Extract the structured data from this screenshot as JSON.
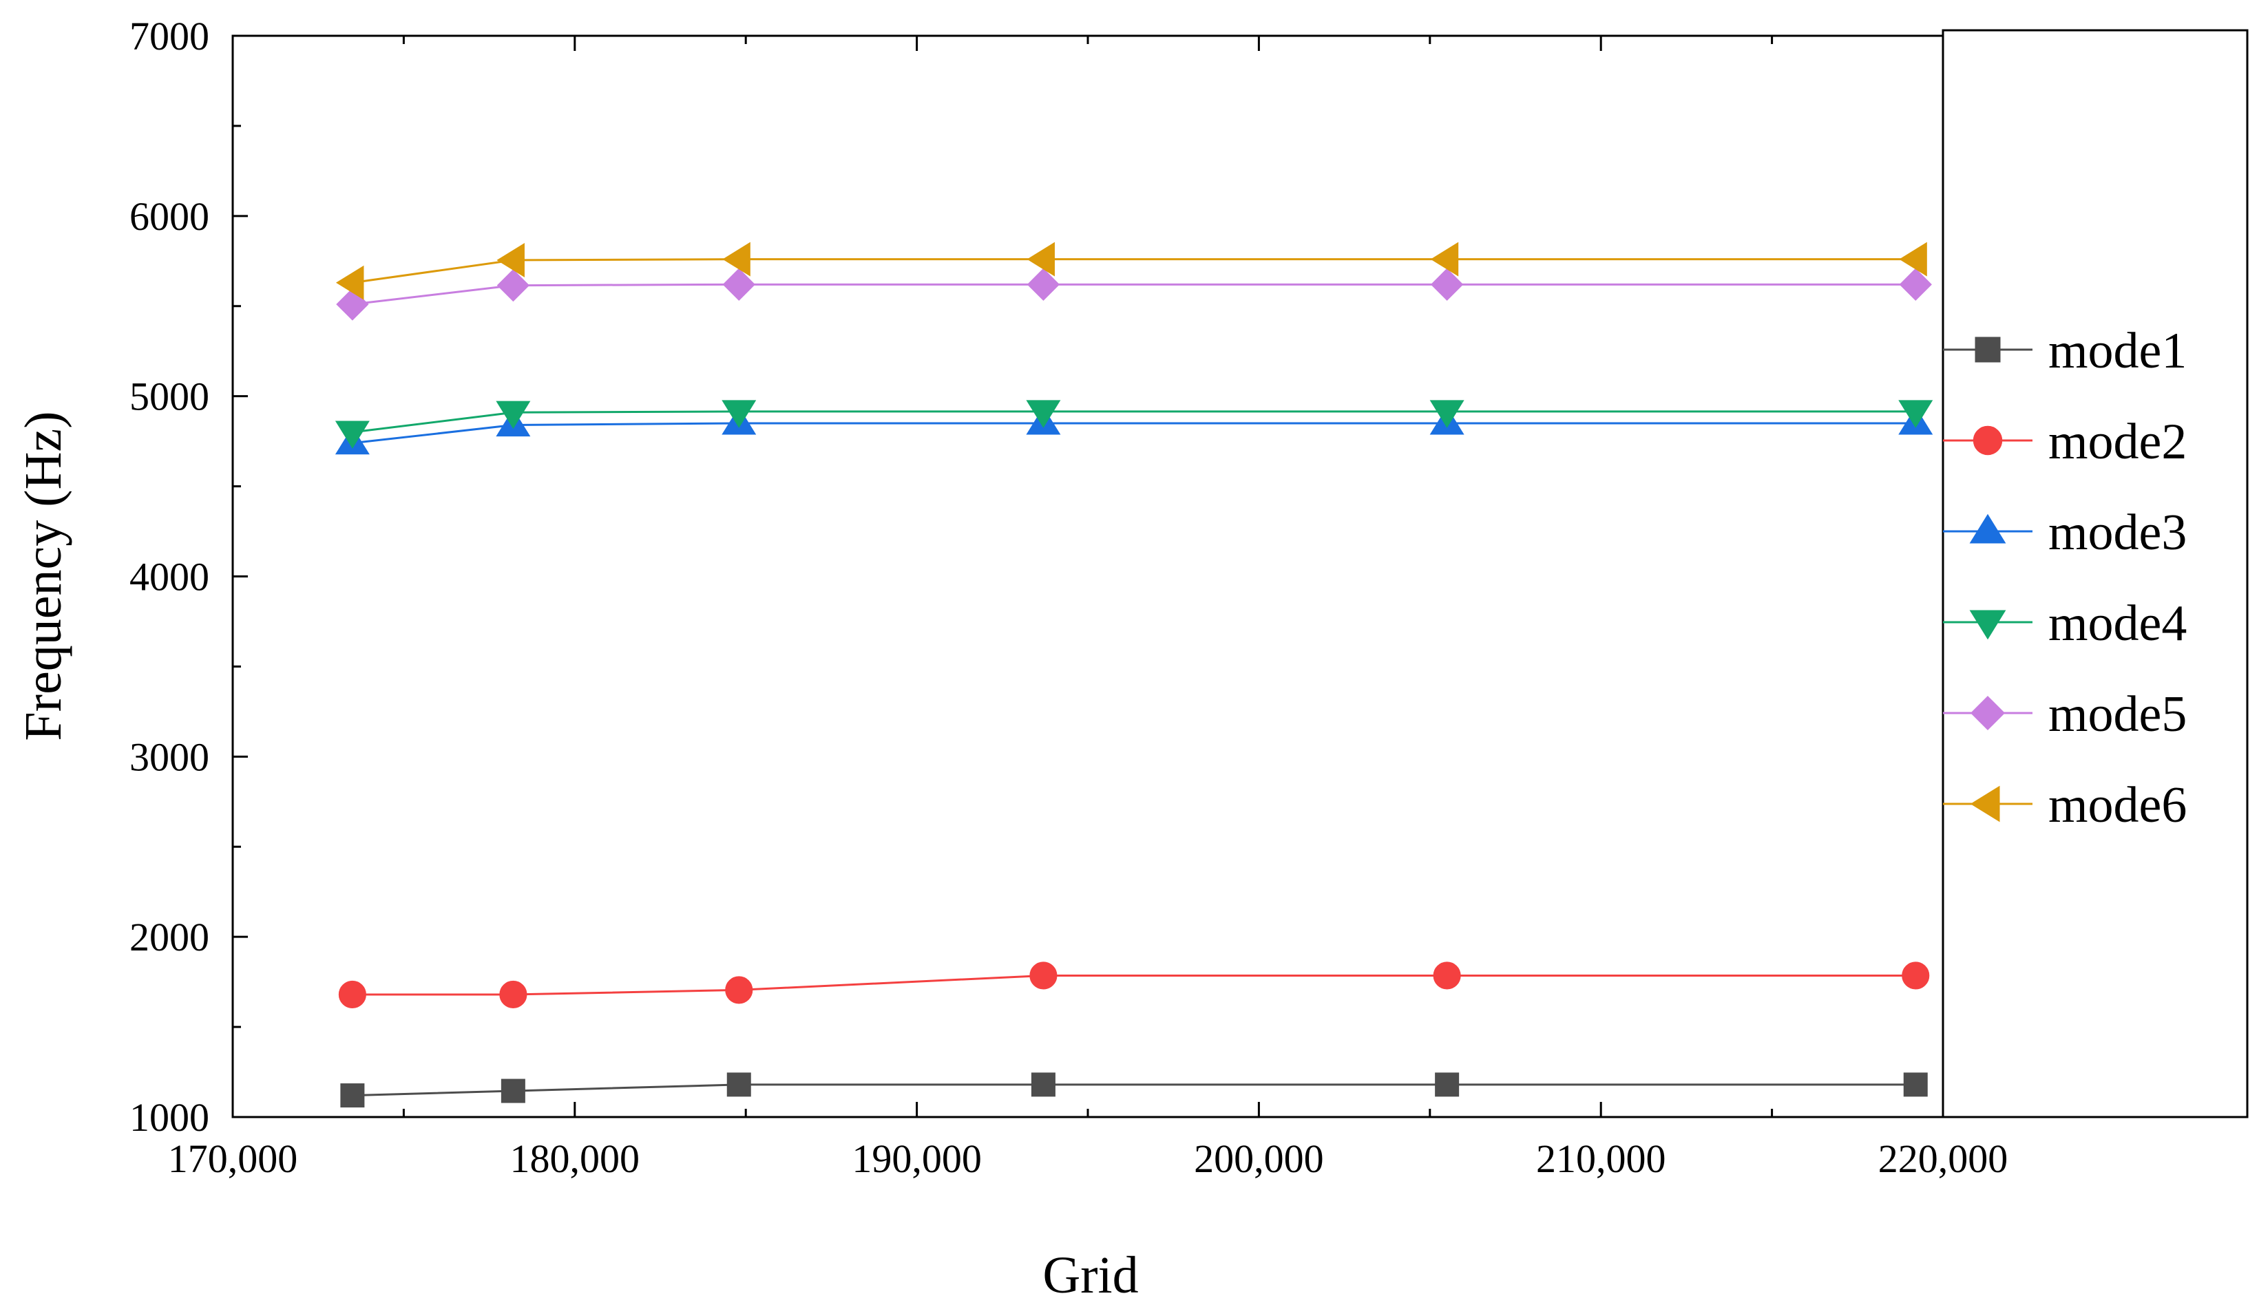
{
  "chart_data": {
    "type": "line",
    "title": "",
    "xlabel": "Grid",
    "ylabel": "Frequency (Hz)",
    "xlim": [
      170000,
      220000
    ],
    "ylim": [
      1000,
      7000
    ],
    "x_ticks": [
      170000,
      180000,
      190000,
      200000,
      210000,
      220000
    ],
    "x_tick_labels": [
      "170,000",
      "180,000",
      "190,000",
      "200,000",
      "210,000",
      "220,000"
    ],
    "y_ticks": [
      1000,
      2000,
      3000,
      4000,
      5000,
      6000,
      7000
    ],
    "y_tick_labels": [
      "1000",
      "2000",
      "3000",
      "4000",
      "5000",
      "6000",
      "7000"
    ],
    "grid": false,
    "legend_position": "right",
    "x": [
      173500,
      178200,
      184800,
      193700,
      205500,
      219200
    ],
    "series": [
      {
        "name": "mode1",
        "marker": "square",
        "color": "#4d4d4d",
        "values": [
          1120,
          1145,
          1180,
          1180,
          1180,
          1180
        ]
      },
      {
        "name": "mode2",
        "marker": "circle",
        "color": "#f44040",
        "values": [
          1680,
          1680,
          1705,
          1785,
          1785,
          1785
        ]
      },
      {
        "name": "mode3",
        "marker": "triangle-up",
        "color": "#1a6fe0",
        "values": [
          4740,
          4840,
          4850,
          4850,
          4850,
          4850
        ]
      },
      {
        "name": "mode4",
        "marker": "triangle-down",
        "color": "#12a86b",
        "values": [
          4800,
          4910,
          4915,
          4915,
          4915,
          4915
        ]
      },
      {
        "name": "mode5",
        "marker": "diamond",
        "color": "#c87ee0",
        "values": [
          5510,
          5615,
          5620,
          5620,
          5620,
          5620
        ]
      },
      {
        "name": "mode6",
        "marker": "triangle-left",
        "color": "#dc9a0a",
        "values": [
          5630,
          5755,
          5760,
          5760,
          5760,
          5760
        ]
      }
    ]
  }
}
